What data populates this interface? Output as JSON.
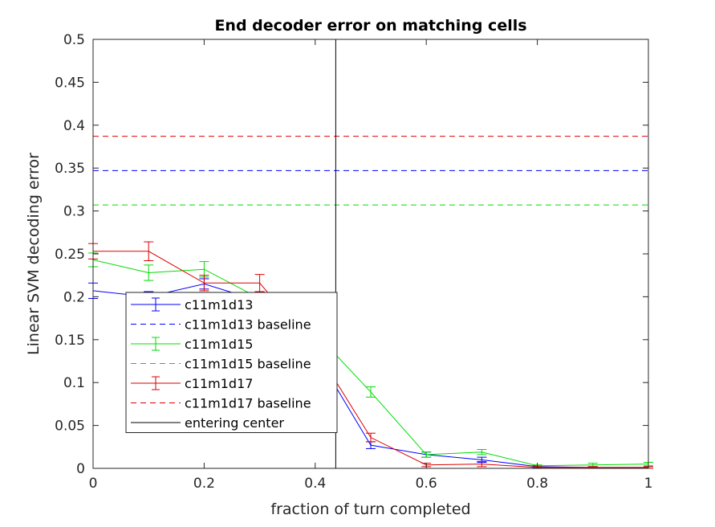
{
  "chart_data": {
    "type": "line",
    "title": "End decoder error on matching cells",
    "xlabel": "fraction of turn completed",
    "ylabel": "Linear SVM decoding error",
    "xlim": [
      0,
      1
    ],
    "ylim": [
      0,
      0.5
    ],
    "xticks": [
      0,
      0.2,
      0.4,
      0.6,
      0.8,
      1
    ],
    "xtick_labels": [
      "0",
      "0.2",
      "0.4",
      "0.6",
      "0.8",
      "1"
    ],
    "yticks": [
      0,
      0.05,
      0.1,
      0.15,
      0.2,
      0.25,
      0.3,
      0.35,
      0.4,
      0.45,
      0.5
    ],
    "ytick_labels": [
      "0",
      "0.05",
      "0.1",
      "0.15",
      "0.2",
      "0.25",
      "0.3",
      "0.35",
      "0.4",
      "0.45",
      "0.5"
    ],
    "grid": false,
    "legend_position": "middle-left",
    "x": [
      0,
      0.1,
      0.2,
      0.3,
      0.4,
      0.5,
      0.6,
      0.7,
      0.8,
      0.9,
      1.0
    ],
    "series": [
      {
        "name": "c11m1d13",
        "color": "#0000ff",
        "style": "solid",
        "values": [
          0.207,
          0.2,
          0.215,
          0.195,
          0.135,
          0.027,
          0.016,
          0.01,
          0.002,
          0.001,
          0.001
        ],
        "errors": [
          0.009,
          0.006,
          0.006,
          0.006,
          0.007,
          0.004,
          0.003,
          0.003,
          0.001,
          0.001,
          0.001
        ]
      },
      {
        "name": "c11m1d13 baseline",
        "color": "#0000ff",
        "style": "dashed",
        "constant": 0.347
      },
      {
        "name": "c11m1d15",
        "color": "#00dd00",
        "style": "solid",
        "values": [
          0.243,
          0.228,
          0.232,
          0.198,
          0.158,
          0.089,
          0.016,
          0.019,
          0.003,
          0.004,
          0.005
        ],
        "errors": [
          0.008,
          0.009,
          0.009,
          0.008,
          0.007,
          0.006,
          0.003,
          0.003,
          0.001,
          0.002,
          0.002
        ]
      },
      {
        "name": "c11m1d15 baseline",
        "color": "#00dd00",
        "style": "dashed",
        "constant": 0.307
      },
      {
        "name": "c11m1d17",
        "color": "#dd0000",
        "style": "solid",
        "values": [
          0.253,
          0.253,
          0.216,
          0.216,
          0.14,
          0.036,
          0.004,
          0.005,
          0.001,
          0.001,
          0.001
        ],
        "errors": [
          0.009,
          0.011,
          0.009,
          0.01,
          0.008,
          0.005,
          0.002,
          0.003,
          0.001,
          0.001,
          0.001
        ]
      },
      {
        "name": "c11m1d17 baseline",
        "color": "#dd0000",
        "style": "dashed",
        "constant": 0.387
      },
      {
        "name": "entering center",
        "color": "#000000",
        "style": "vertical",
        "x_value": 0.437
      }
    ]
  }
}
